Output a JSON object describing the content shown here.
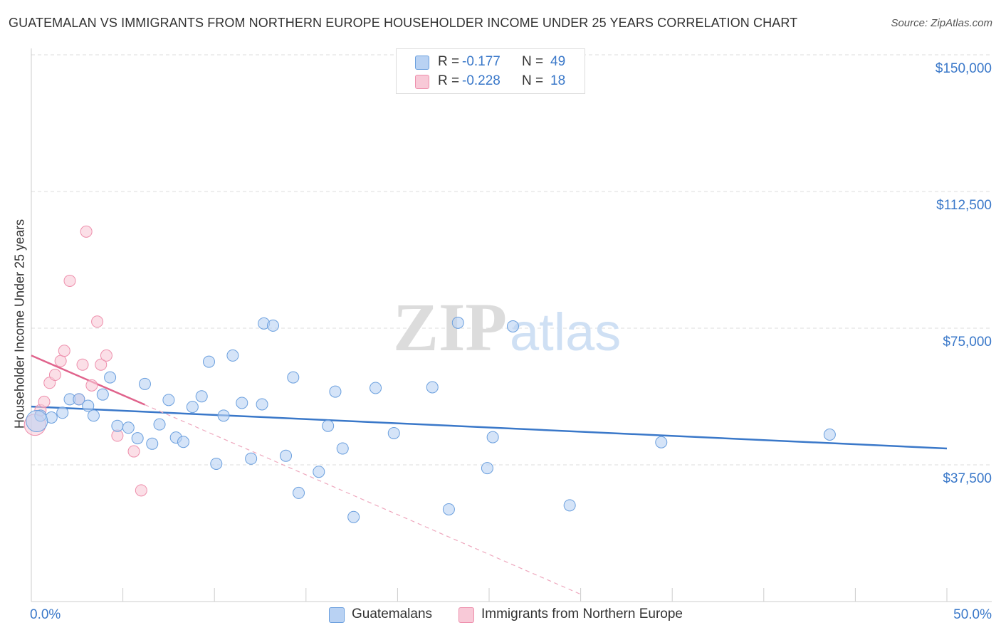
{
  "chart_data": {
    "type": "scatter",
    "title": "GUATEMALAN VS IMMIGRANTS FROM NORTHERN EUROPE HOUSEHOLDER INCOME UNDER 25 YEARS CORRELATION CHART",
    "source": "Source: ZipAtlas.com",
    "ylabel": "Householder Income Under 25 years",
    "xlabel": "",
    "xlim": [
      0,
      50
    ],
    "ylim": [
      0,
      155000
    ],
    "x_tick_labels": [
      "0.0%",
      "50.0%"
    ],
    "y_ticks": [
      37500,
      75000,
      112500,
      150000
    ],
    "y_tick_labels": [
      "$37,500",
      "$75,000",
      "$112,500",
      "$150,000"
    ],
    "watermark": {
      "zip": "ZIP",
      "atlas": "atlas"
    },
    "legend": [
      {
        "r_label": "R =",
        "r_value": "-0.177",
        "n_label": "N =",
        "n_value": "49"
      },
      {
        "r_label": "R =",
        "r_value": "-0.228",
        "n_label": "N =",
        "n_value": "18"
      }
    ],
    "series": [
      {
        "name": "Guatemalans",
        "color": "#6a9fde",
        "fill": "#b9d2f3",
        "trend": {
          "x": [
            0,
            50
          ],
          "y": [
            53500,
            42000
          ],
          "style": "solid"
        },
        "points": [
          {
            "x": 0.5,
            "y": 51000
          },
          {
            "x": 1.1,
            "y": 50500
          },
          {
            "x": 1.7,
            "y": 51800
          },
          {
            "x": 2.1,
            "y": 55500
          },
          {
            "x": 2.6,
            "y": 55500
          },
          {
            "x": 3.1,
            "y": 53700
          },
          {
            "x": 3.4,
            "y": 51000
          },
          {
            "x": 3.9,
            "y": 56800
          },
          {
            "x": 4.3,
            "y": 61500
          },
          {
            "x": 4.7,
            "y": 48200
          },
          {
            "x": 5.3,
            "y": 47700
          },
          {
            "x": 5.8,
            "y": 44800
          },
          {
            "x": 6.2,
            "y": 59700
          },
          {
            "x": 6.6,
            "y": 43300
          },
          {
            "x": 7.0,
            "y": 48600
          },
          {
            "x": 7.5,
            "y": 55300
          },
          {
            "x": 7.9,
            "y": 45000
          },
          {
            "x": 8.3,
            "y": 43800
          },
          {
            "x": 8.8,
            "y": 53400
          },
          {
            "x": 9.3,
            "y": 56300
          },
          {
            "x": 9.7,
            "y": 65800
          },
          {
            "x": 10.1,
            "y": 37800
          },
          {
            "x": 10.5,
            "y": 51000
          },
          {
            "x": 11.0,
            "y": 67500
          },
          {
            "x": 11.5,
            "y": 54500
          },
          {
            "x": 12.0,
            "y": 39200
          },
          {
            "x": 12.6,
            "y": 54100
          },
          {
            "x": 12.7,
            "y": 76300
          },
          {
            "x": 13.2,
            "y": 75700
          },
          {
            "x": 13.9,
            "y": 40000
          },
          {
            "x": 14.3,
            "y": 61500
          },
          {
            "x": 14.6,
            "y": 29800
          },
          {
            "x": 15.7,
            "y": 35600
          },
          {
            "x": 16.2,
            "y": 48200
          },
          {
            "x": 16.6,
            "y": 57600
          },
          {
            "x": 17.0,
            "y": 42000
          },
          {
            "x": 17.6,
            "y": 23200
          },
          {
            "x": 18.8,
            "y": 58600
          },
          {
            "x": 19.8,
            "y": 46200
          },
          {
            "x": 21.9,
            "y": 58800
          },
          {
            "x": 22.8,
            "y": 25300
          },
          {
            "x": 23.3,
            "y": 76500
          },
          {
            "x": 24.9,
            "y": 36600
          },
          {
            "x": 25.2,
            "y": 45100
          },
          {
            "x": 26.3,
            "y": 75500
          },
          {
            "x": 29.4,
            "y": 26400
          },
          {
            "x": 34.4,
            "y": 43700
          },
          {
            "x": 43.6,
            "y": 45800
          },
          {
            "x": 0.3,
            "y": 49500
          }
        ]
      },
      {
        "name": "Immigrants from Northern Europe",
        "color": "#ee8fac",
        "fill": "#f8c9d7",
        "trend": {
          "x": [
            0,
            6.2
          ],
          "y": [
            67500,
            54000
          ],
          "style": "solid"
        },
        "trend_extension": {
          "x": [
            6.2,
            30.0
          ],
          "y": [
            54000,
            2000
          ],
          "style": "dashed"
        },
        "points": [
          {
            "x": 0.2,
            "y": 48500
          },
          {
            "x": 0.5,
            "y": 52500
          },
          {
            "x": 0.7,
            "y": 54800
          },
          {
            "x": 1.0,
            "y": 60000
          },
          {
            "x": 1.3,
            "y": 62200
          },
          {
            "x": 1.6,
            "y": 66000
          },
          {
            "x": 1.8,
            "y": 68800
          },
          {
            "x": 2.1,
            "y": 88000
          },
          {
            "x": 2.6,
            "y": 55500
          },
          {
            "x": 2.8,
            "y": 65000
          },
          {
            "x": 3.0,
            "y": 101500
          },
          {
            "x": 3.3,
            "y": 59300
          },
          {
            "x": 3.6,
            "y": 76800
          },
          {
            "x": 3.8,
            "y": 65000
          },
          {
            "x": 4.1,
            "y": 67500
          },
          {
            "x": 4.7,
            "y": 45500
          },
          {
            "x": 5.6,
            "y": 41200
          },
          {
            "x": 6.0,
            "y": 30500
          }
        ]
      }
    ]
  },
  "legend_bottom": [
    {
      "label": "Guatemalans",
      "color": "#b9d2f3",
      "border": "#6a9fde"
    },
    {
      "label": "Immigrants from Northern Europe",
      "color": "#f8c9d7",
      "border": "#ee8fac"
    }
  ]
}
